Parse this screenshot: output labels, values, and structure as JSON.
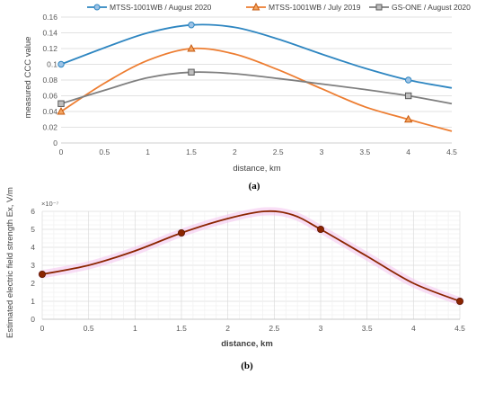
{
  "chart_data": [
    {
      "type": "line",
      "panel_label": "(a)",
      "xlabel": "distance, km",
      "ylabel": "measured CCC value",
      "xlim": [
        0,
        4.5
      ],
      "ylim": [
        0,
        0.16
      ],
      "x_ticks": [
        "0",
        "0.5",
        "1",
        "1.5",
        "2",
        "2.5",
        "3",
        "3.5",
        "4",
        "4.5"
      ],
      "y_ticks": [
        "0",
        "0.02",
        "0.04",
        "0.06",
        "0.08",
        "0.1",
        "0.12",
        "0.14",
        "0.16"
      ],
      "grid": "horizontal",
      "legend_position": "top",
      "series": [
        {
          "name": "MTSS-1001WB / August 2020",
          "color": "#2E86C1",
          "marker": "circle",
          "points": [
            [
              0,
              0.1
            ],
            [
              1.5,
              0.15
            ],
            [
              4,
              0.08
            ]
          ],
          "curve": [
            [
              0,
              0.1
            ],
            [
              0.5,
              0.121
            ],
            [
              1,
              0.14
            ],
            [
              1.5,
              0.15
            ],
            [
              2,
              0.147
            ],
            [
              2.5,
              0.132
            ],
            [
              3,
              0.113
            ],
            [
              3.5,
              0.095
            ],
            [
              4,
              0.08
            ],
            [
              4.5,
              0.07
            ]
          ]
        },
        {
          "name": "MTSS-1001WB / July 2019",
          "color": "#ED7D31",
          "marker": "triangle",
          "points": [
            [
              0,
              0.04
            ],
            [
              1.5,
              0.12
            ],
            [
              4,
              0.03
            ]
          ],
          "curve": [
            [
              0,
              0.04
            ],
            [
              0.5,
              0.076
            ],
            [
              1,
              0.105
            ],
            [
              1.5,
              0.12
            ],
            [
              2,
              0.113
            ],
            [
              2.5,
              0.093
            ],
            [
              3,
              0.069
            ],
            [
              3.5,
              0.046
            ],
            [
              4,
              0.03
            ],
            [
              4.5,
              0.015
            ]
          ]
        },
        {
          "name": "GS-ONE / August 2020",
          "color": "#7F7F7F",
          "marker": "square",
          "points": [
            [
              0,
              0.05
            ],
            [
              1.5,
              0.09
            ],
            [
              4,
              0.06
            ]
          ],
          "curve": [
            [
              0,
              0.05
            ],
            [
              0.5,
              0.067
            ],
            [
              1,
              0.083
            ],
            [
              1.5,
              0.09
            ],
            [
              2,
              0.088
            ],
            [
              2.5,
              0.082
            ],
            [
              3,
              0.075
            ],
            [
              3.5,
              0.068
            ],
            [
              4,
              0.06
            ],
            [
              4.5,
              0.05
            ]
          ]
        }
      ]
    },
    {
      "type": "line",
      "panel_label": "(b)",
      "xlabel": "distance, km",
      "ylabel": "Estimated electric field strength Ex, V/m",
      "y_multiplier": "×10⁻⁷",
      "xlim": [
        0,
        4.5
      ],
      "ylim": [
        0,
        6
      ],
      "x_ticks": [
        "0",
        "0.5",
        "1",
        "1.5",
        "2",
        "2.5",
        "3",
        "3.5",
        "4",
        "4.5"
      ],
      "y_ticks": [
        "0",
        "1",
        "2",
        "3",
        "4",
        "5",
        "6"
      ],
      "grid": "both",
      "series": [
        {
          "color": "#8B2500",
          "glow_color": "#F4C2EE",
          "marker": "circle",
          "points": [
            [
              0,
              2.5
            ],
            [
              1.5,
              4.8
            ],
            [
              3,
              5.0
            ],
            [
              4.5,
              1.0
            ]
          ],
          "curve": [
            [
              0,
              2.5
            ],
            [
              0.5,
              3.0
            ],
            [
              1,
              3.8
            ],
            [
              1.5,
              4.8
            ],
            [
              2,
              5.6
            ],
            [
              2.4,
              6.0
            ],
            [
              2.7,
              5.8
            ],
            [
              3,
              5.0
            ],
            [
              3.5,
              3.5
            ],
            [
              4,
              2.0
            ],
            [
              4.5,
              1.0
            ]
          ]
        }
      ]
    }
  ]
}
